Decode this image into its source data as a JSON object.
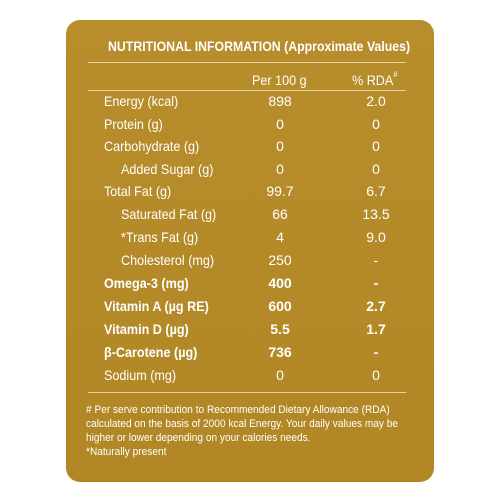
{
  "label": {
    "title": "NUTRITIONAL INFORMATION (Approximate Values)",
    "columns": {
      "per": "Per 100 g",
      "rda": "% RDA",
      "rda_mark": "#"
    },
    "rows": [
      {
        "name": "Energy (kcal)",
        "per": "898",
        "rda": "2.0"
      },
      {
        "name": "Protein (g)",
        "per": "0",
        "rda": "0"
      },
      {
        "name": "Carbohydrate (g)",
        "per": "0",
        "rda": "0"
      },
      {
        "name": "Added Sugar (g)",
        "per": "0",
        "rda": "0"
      },
      {
        "name": "Total Fat (g)",
        "per": "99.7",
        "rda": "6.7"
      },
      {
        "name": "Saturated Fat (g)",
        "per": "66",
        "rda": "13.5"
      },
      {
        "name": "*Trans Fat (g)",
        "per": "4",
        "rda": "9.0"
      },
      {
        "name": "Cholesterol (mg)",
        "per": "250",
        "rda": "-"
      },
      {
        "name": "Omega-3 (mg)",
        "per": "400",
        "rda": "-"
      },
      {
        "name": "Vitamin A (µg RE)",
        "per": "600",
        "rda": "2.7"
      },
      {
        "name": "Vitamin D (µg)",
        "per": "5.5",
        "rda": "1.7"
      },
      {
        "name": "β-Carotene (µg)",
        "per": "736",
        "rda": "-"
      },
      {
        "name": "Sodium (mg)",
        "per": "0",
        "rda": "0"
      }
    ],
    "footnotes": [
      "# Per serve contribution to Recommended Dietary Allowance (RDA)",
      "calculated on the basis of 2000 kcal Energy. Your daily values may be",
      "higher or lower depending on your calories needs.",
      "*Naturally present"
    ]
  },
  "colors": {
    "panel": "#b48a29",
    "text": "#ffffff",
    "page": "#ffffff"
  }
}
